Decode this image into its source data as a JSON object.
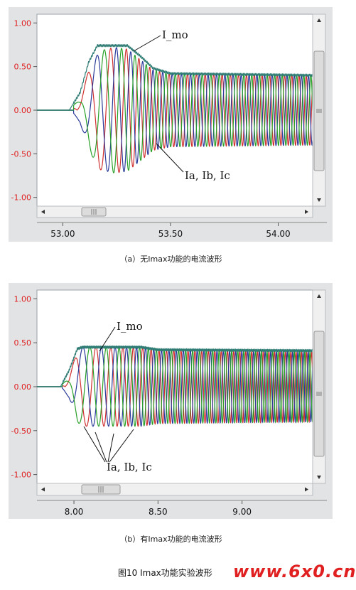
{
  "chart_data": [
    {
      "type": "line",
      "caption": "（a）无Imax功能的电流波形",
      "x_ticks": [
        "53.00",
        "53.50",
        "54.00"
      ],
      "x_tick_values": [
        53.0,
        53.5,
        54.0
      ],
      "xlim": [
        52.88,
        54.16
      ],
      "y_ticks": [
        "1.00",
        "0.50",
        "0.00",
        "-0.50",
        "-1.00"
      ],
      "y_tick_values": [
        1.0,
        0.5,
        0.0,
        -0.5,
        -1.0
      ],
      "ylim": [
        -1.1,
        1.1
      ],
      "annotations": [
        "I_mo",
        "Ia, Ib, Ic"
      ],
      "fault_start": 53.05,
      "settle_time": 53.42,
      "series": [
        {
          "color": "#d03030",
          "phase_deg": 0,
          "envelope": [
            [
              52.88,
              0.0
            ],
            [
              53.03,
              0.0
            ],
            [
              53.08,
              0.14
            ],
            [
              53.12,
              0.45
            ],
            [
              53.17,
              0.68
            ],
            [
              53.24,
              0.72
            ],
            [
              53.3,
              0.7
            ],
            [
              53.36,
              0.58
            ],
            [
              53.42,
              0.46
            ],
            [
              53.5,
              0.42
            ],
            [
              54.16,
              0.4
            ]
          ]
        },
        {
          "color": "#2a3a9a",
          "phase_deg": 120,
          "envelope": [
            [
              52.88,
              0.0
            ],
            [
              53.03,
              0.0
            ],
            [
              53.08,
              0.14
            ],
            [
              53.12,
              0.45
            ],
            [
              53.17,
              0.68
            ],
            [
              53.24,
              0.72
            ],
            [
              53.3,
              0.7
            ],
            [
              53.36,
              0.58
            ],
            [
              53.42,
              0.46
            ],
            [
              53.5,
              0.42
            ],
            [
              54.16,
              0.4
            ]
          ]
        },
        {
          "color": "#28a028",
          "phase_deg": 240,
          "envelope": [
            [
              52.88,
              0.0
            ],
            [
              53.03,
              0.0
            ],
            [
              53.08,
              0.14
            ],
            [
              53.12,
              0.45
            ],
            [
              53.17,
              0.68
            ],
            [
              53.24,
              0.72
            ],
            [
              53.3,
              0.7
            ],
            [
              53.36,
              0.58
            ],
            [
              53.42,
              0.46
            ],
            [
              53.5,
              0.42
            ],
            [
              54.16,
              0.4
            ]
          ]
        },
        {
          "color": "#2e7c74",
          "kind": "envelope",
          "values": [
            [
              52.88,
              0.0
            ],
            [
              53.03,
              0.0
            ],
            [
              53.08,
              0.2
            ],
            [
              53.12,
              0.55
            ],
            [
              53.16,
              0.74
            ],
            [
              53.3,
              0.74
            ],
            [
              53.36,
              0.62
            ],
            [
              53.42,
              0.48
            ],
            [
              53.5,
              0.42
            ],
            [
              54.16,
              0.4
            ]
          ]
        }
      ]
    },
    {
      "type": "line",
      "caption": "（b）有Imax功能的电流波形",
      "x_ticks": [
        "8.00",
        "8.50",
        "9.00"
      ],
      "x_tick_values": [
        8.0,
        8.5,
        9.0
      ],
      "xlim": [
        7.78,
        9.42
      ],
      "y_ticks": [
        "1.00",
        "0.50",
        "0.00",
        "-0.50",
        "-1.00"
      ],
      "y_tick_values": [
        1.0,
        0.5,
        0.0,
        -0.5,
        -1.0
      ],
      "ylim": [
        -1.1,
        1.1
      ],
      "annotations": [
        "I_mo",
        "Ia, Ib, Ic"
      ],
      "fault_start": 7.93,
      "settle_time": 8.5,
      "series": [
        {
          "color": "#d03030",
          "phase_deg": 0,
          "envelope": [
            [
              7.78,
              0.0
            ],
            [
              7.92,
              0.0
            ],
            [
              7.97,
              0.12
            ],
            [
              8.02,
              0.4
            ],
            [
              8.05,
              0.45
            ],
            [
              8.4,
              0.45
            ],
            [
              8.5,
              0.42
            ],
            [
              9.42,
              0.4
            ]
          ]
        },
        {
          "color": "#2a3a9a",
          "phase_deg": 120,
          "envelope": [
            [
              7.78,
              0.0
            ],
            [
              7.92,
              0.0
            ],
            [
              7.97,
              0.12
            ],
            [
              8.02,
              0.4
            ],
            [
              8.05,
              0.45
            ],
            [
              8.4,
              0.45
            ],
            [
              8.5,
              0.42
            ],
            [
              9.42,
              0.4
            ]
          ]
        },
        {
          "color": "#28a028",
          "phase_deg": 240,
          "envelope": [
            [
              7.78,
              0.0
            ],
            [
              7.92,
              0.0
            ],
            [
              7.97,
              0.12
            ],
            [
              8.02,
              0.4
            ],
            [
              8.05,
              0.45
            ],
            [
              8.4,
              0.45
            ],
            [
              8.5,
              0.42
            ],
            [
              9.42,
              0.4
            ]
          ]
        },
        {
          "color": "#2e7c74",
          "kind": "envelope",
          "values": [
            [
              7.78,
              0.0
            ],
            [
              7.92,
              0.0
            ],
            [
              7.97,
              0.18
            ],
            [
              8.02,
              0.43
            ],
            [
              8.05,
              0.45
            ],
            [
              8.4,
              0.45
            ],
            [
              8.5,
              0.42
            ],
            [
              9.42,
              0.41
            ]
          ]
        }
      ]
    }
  ],
  "figure_caption": "图10 Imax功能实验波形",
  "watermark": "www.6x0.cn",
  "colors": {
    "tick_label": "#e02020",
    "panel_bg": "#e1e3e5",
    "plot_bg": "#ffffff"
  },
  "icons": [
    "scroll-left-arrow-icon",
    "scroll-right-arrow-icon",
    "scroll-up-arrow-icon",
    "scroll-down-arrow-icon",
    "scroll-grip-icon"
  ]
}
